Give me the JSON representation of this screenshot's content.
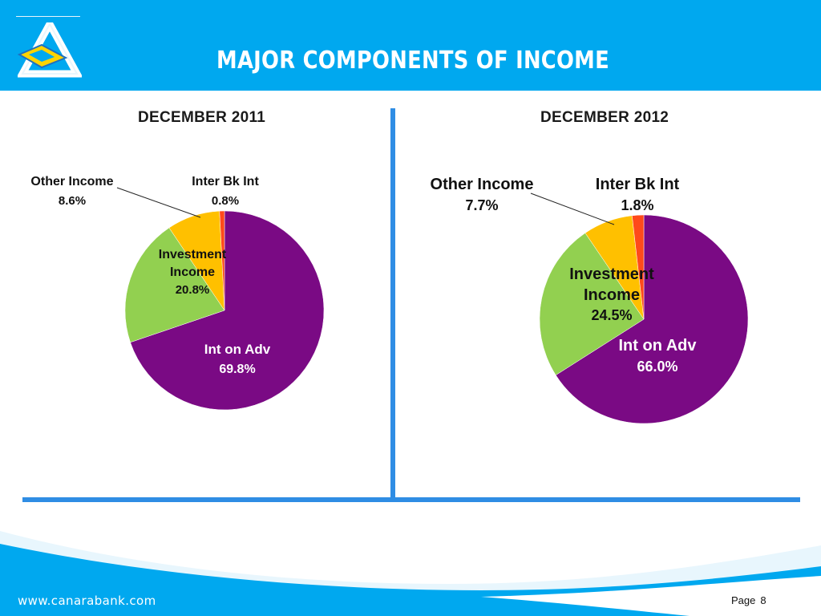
{
  "header": {
    "title": "MAJOR COMPONENTS OF INCOME",
    "logo_icon": "canara-bank-logo-icon",
    "background_color": "#00a8ef"
  },
  "chart_data": [
    {
      "type": "pie",
      "title": "DECEMBER  2011",
      "slices": [
        {
          "label": "Int on Adv",
          "value": 69.8,
          "display": "69.8%",
          "color": "#7a0a84"
        },
        {
          "label": "Investment Income",
          "value": 20.8,
          "display": "20.8%",
          "color": "#92d050"
        },
        {
          "label": "Other Income",
          "value": 8.6,
          "display": "8.6%",
          "color": "#ffc000"
        },
        {
          "label": "Inter Bk Int",
          "value": 0.8,
          "display": "0.8%",
          "color": "#ff4a1a"
        }
      ]
    },
    {
      "type": "pie",
      "title": "DECEMBER  2012",
      "slices": [
        {
          "label": "Int on Adv",
          "value": 66.0,
          "display": "66.0%",
          "color": "#7a0a84"
        },
        {
          "label": "Investment Income",
          "value": 24.5,
          "display": "24.5%",
          "color": "#92d050"
        },
        {
          "label": "Other Income",
          "value": 7.7,
          "display": "7.7%",
          "color": "#ffc000"
        },
        {
          "label": "Inter Bk Int",
          "value": 1.8,
          "display": "1.8%",
          "color": "#ff4a1a"
        }
      ]
    }
  ],
  "footer": {
    "url": "www.canarabank.com",
    "page_label": "Page",
    "page_number": "8"
  }
}
